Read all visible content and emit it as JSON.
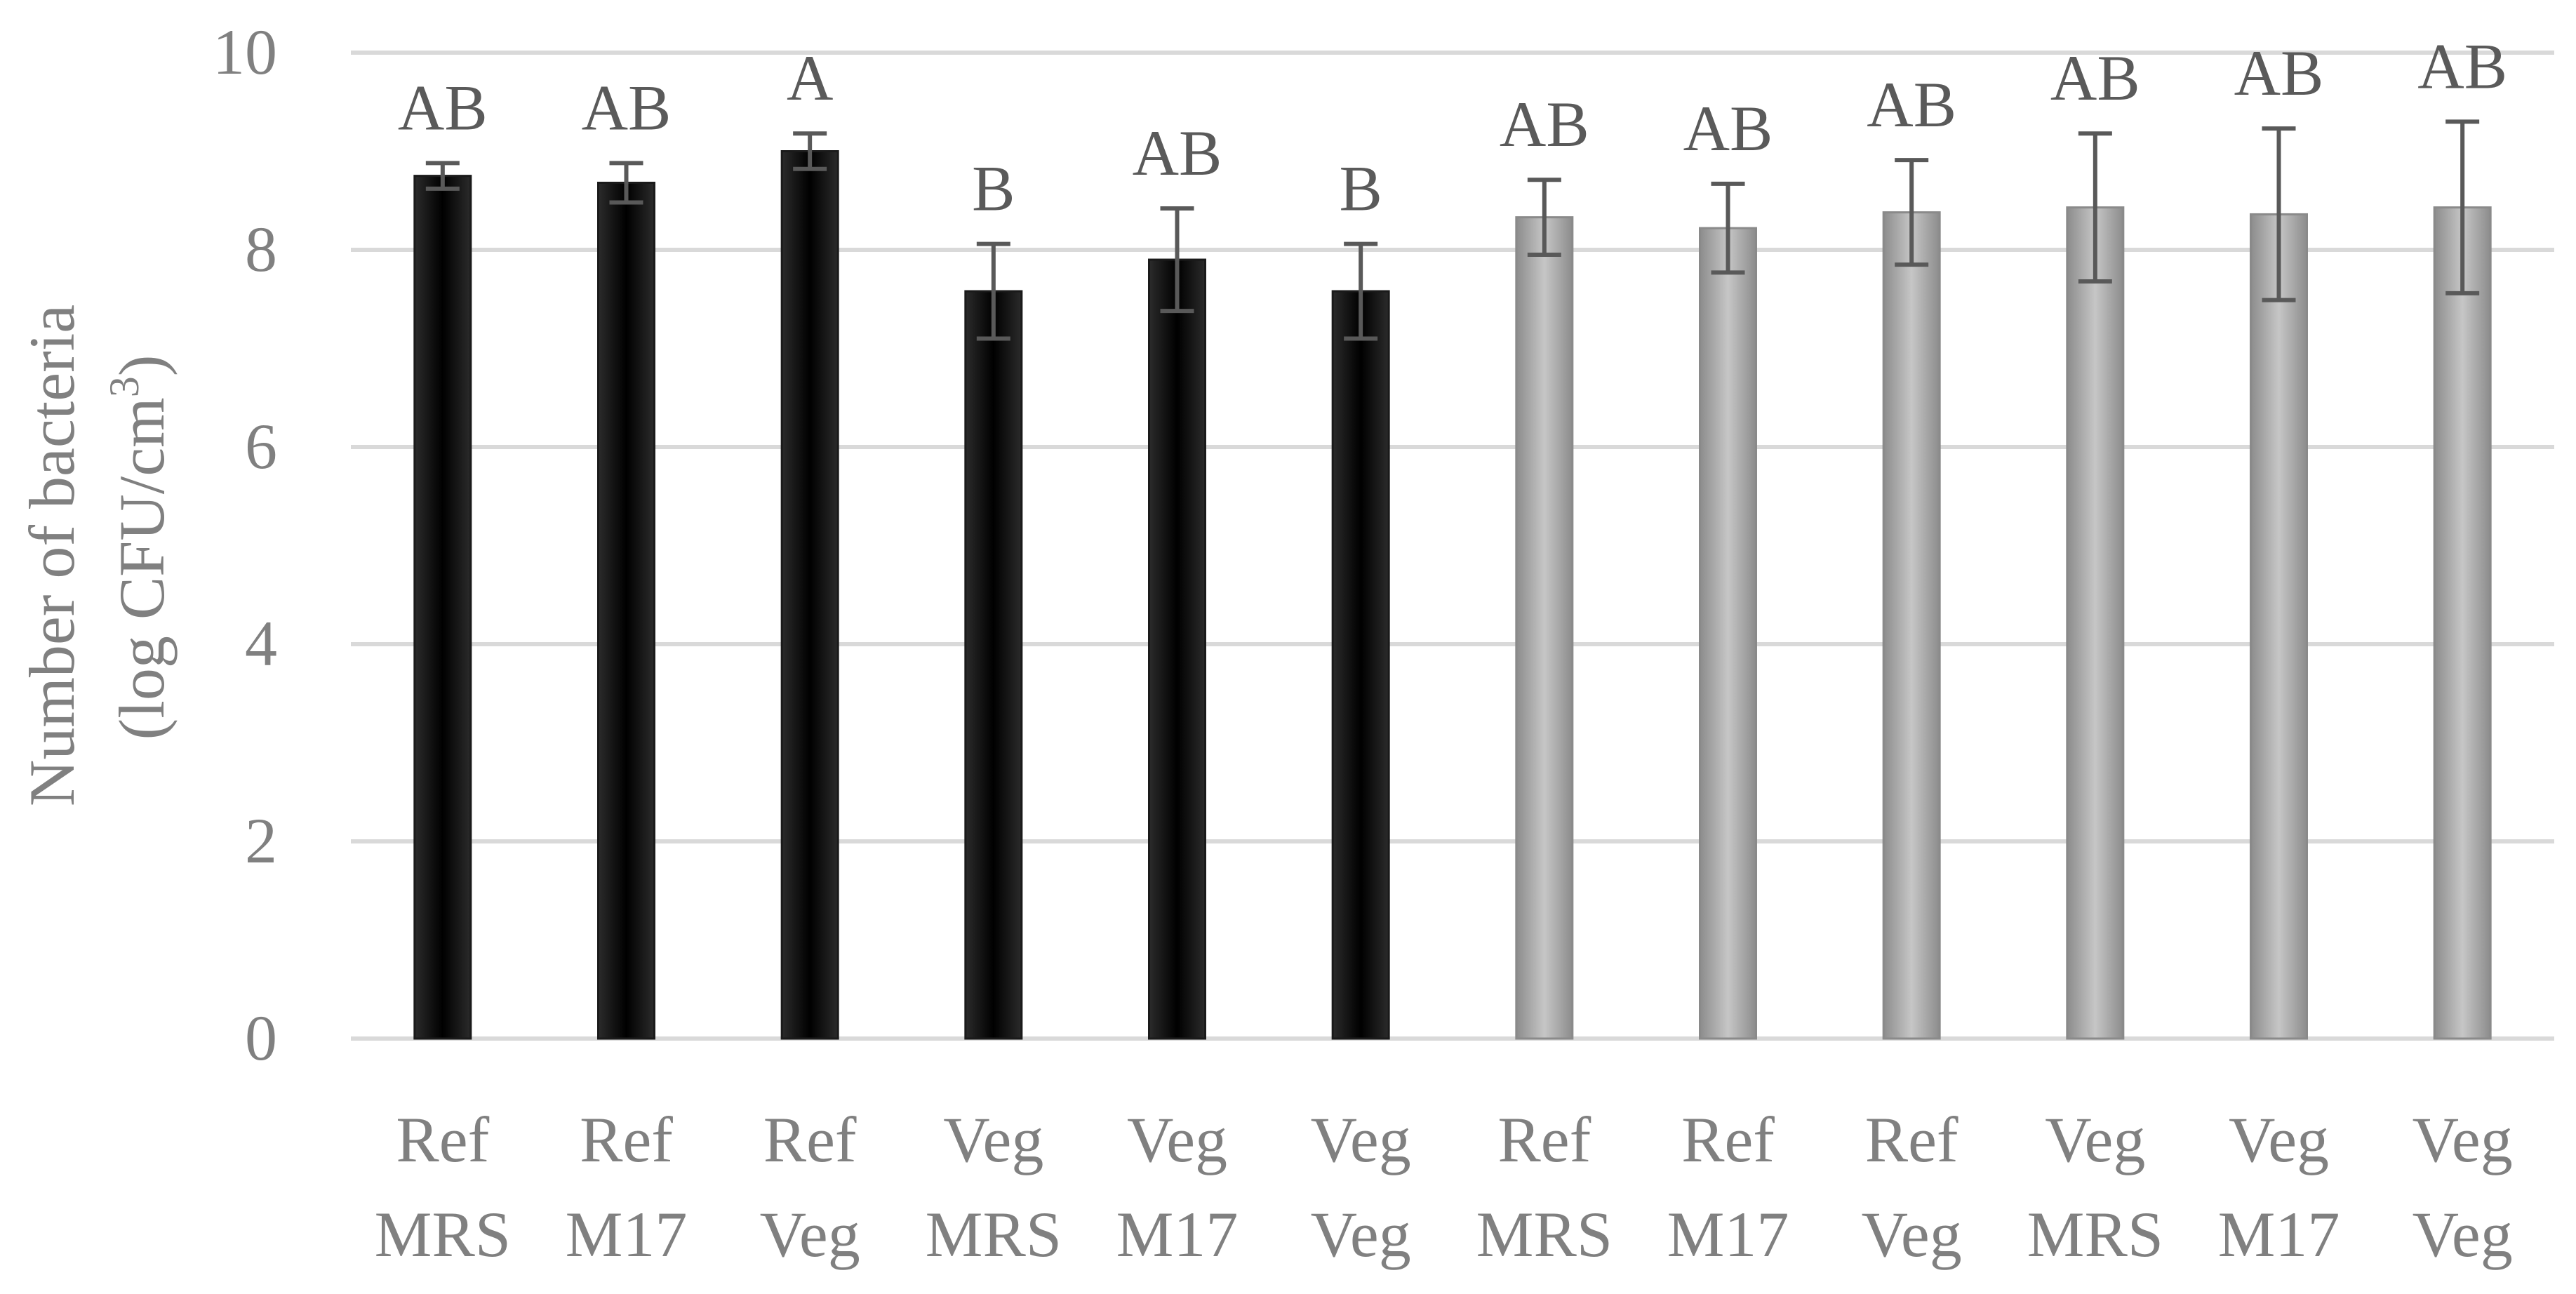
{
  "chart_data": {
    "type": "bar",
    "ylabel_line1": "Number of bacteria",
    "ylabel_line2_prefix": "(log CFU/cm",
    "ylabel_line2_sup": "3",
    "ylabel_line2_suffix": ")",
    "ylim": [
      0,
      10
    ],
    "yticks": [
      0,
      2,
      4,
      6,
      8,
      10
    ],
    "ytick_labels": [
      "0",
      "2",
      "4",
      "6",
      "8",
      "10"
    ],
    "grid": true,
    "categories": [
      [
        "Ref",
        "MRS"
      ],
      [
        "Ref",
        "M17"
      ],
      [
        "Ref",
        "Veg"
      ],
      [
        "Veg",
        "MRS"
      ],
      [
        "Veg",
        "M17"
      ],
      [
        "Veg",
        "Veg"
      ],
      [
        "Ref",
        "MRS"
      ],
      [
        "Ref",
        "M17"
      ],
      [
        "Ref",
        "Veg"
      ],
      [
        "Veg",
        "MRS"
      ],
      [
        "Veg",
        "M17"
      ],
      [
        "Veg",
        "Veg"
      ]
    ],
    "values": [
      8.75,
      8.68,
      9.0,
      7.58,
      7.9,
      7.58,
      8.33,
      8.22,
      8.38,
      8.43,
      8.36,
      8.43
    ],
    "errors": [
      0.13,
      0.2,
      0.18,
      0.48,
      0.52,
      0.48,
      0.38,
      0.45,
      0.53,
      0.75,
      0.87,
      0.87
    ],
    "significance_letters": [
      "AB",
      "AB",
      "A",
      "B",
      "AB",
      "B",
      "AB",
      "AB",
      "AB",
      "AB",
      "AB",
      "AB"
    ],
    "bar_colors": [
      "#000000",
      "#000000",
      "#000000",
      "#000000",
      "#000000",
      "#000000",
      "#a6a6a6",
      "#a6a6a6",
      "#a6a6a6",
      "#a6a6a6",
      "#a6a6a6",
      "#a6a6a6"
    ],
    "colors": {
      "dark_bar": "#000000",
      "light_bar": "#a6a6a6",
      "gridline": "#d9d9d9",
      "axis_text": "#808080",
      "error_bar": "#595959",
      "letter_text": "#5a5a5a"
    }
  }
}
